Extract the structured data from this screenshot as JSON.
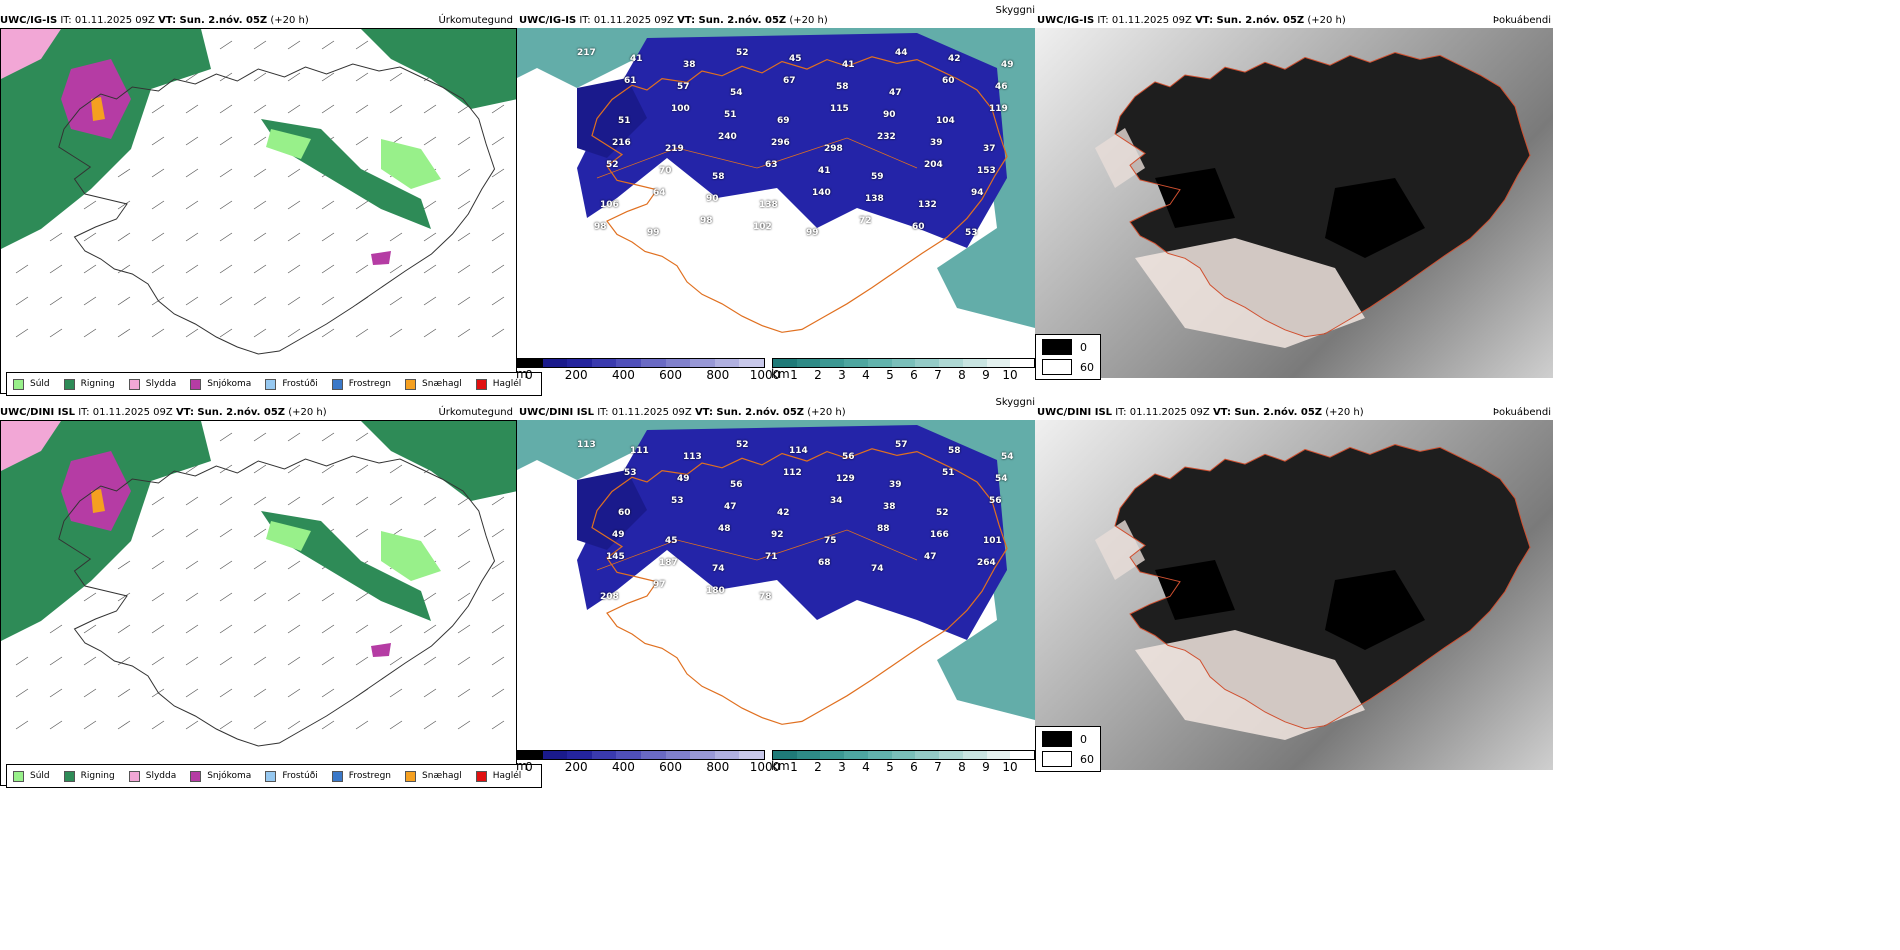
{
  "rows": [
    {
      "model": "UWC/IG-IS",
      "it": "IT: 01.11.2025 09Z",
      "vt": "VT: Sun. 2.nóv. 05Z",
      "lead": "(+20 h)",
      "labels": [
        "217",
        "41",
        "38",
        "52",
        "45",
        "41",
        "44",
        "42",
        "49",
        "61",
        "57",
        "54",
        "67",
        "58",
        "47",
        "60",
        "46",
        "51",
        "100",
        "51",
        "69",
        "115",
        "90",
        "104",
        "119",
        "216",
        "219",
        "240",
        "296",
        "298",
        "232",
        "39",
        "37",
        "52",
        "70",
        "58",
        "63",
        "41",
        "59",
        "204",
        "153",
        "106",
        "64",
        "90",
        "138",
        "140",
        "138",
        "132",
        "94",
        "98",
        "99",
        "98",
        "102",
        "99",
        "72",
        "60",
        "53"
      ]
    },
    {
      "model": "UWC/DINI ISL",
      "it": "IT: 01.11.2025 09Z",
      "vt": "VT: Sun. 2.nóv. 05Z",
      "lead": "(+20 h)",
      "labels": [
        "113",
        "111",
        "113",
        "52",
        "114",
        "56",
        "57",
        "58",
        "54",
        "53",
        "49",
        "56",
        "112",
        "129",
        "39",
        "51",
        "54",
        "60",
        "53",
        "47",
        "42",
        "34",
        "38",
        "52",
        "56",
        "49",
        "45",
        "48",
        "92",
        "75",
        "88",
        "166",
        "101",
        "145",
        "187",
        "74",
        "71",
        "68",
        "74",
        "47",
        "264",
        "208",
        "97",
        "180",
        "78"
      ]
    }
  ],
  "precip": {
    "title": "Úrkomutegund",
    "legend": [
      {
        "label": "Súld",
        "color": "#98f08a"
      },
      {
        "label": "Rigning",
        "color": "#2e8b57"
      },
      {
        "label": "Slydda",
        "color": "#f2a7d6"
      },
      {
        "label": "Snjókoma",
        "color": "#b53ca4"
      },
      {
        "label": "Frostúði",
        "color": "#96c8f0"
      },
      {
        "label": "Frostregn",
        "color": "#3a78c8"
      },
      {
        "label": "Snæhagl",
        "color": "#f5a020"
      },
      {
        "label": "Haglél",
        "color": "#e01010"
      }
    ]
  },
  "visibility": {
    "title": "Skyggni",
    "ceiling_unit": "m",
    "ceiling_ticks": [
      "0",
      "200",
      "400",
      "600",
      "800",
      "1000"
    ],
    "ceiling_colors": [
      "#000000",
      "#1a1a8c",
      "#24249e",
      "#3a3aae",
      "#5050ba",
      "#6a6ac4",
      "#8080cc",
      "#9898d6",
      "#b0b0e0",
      "#c8c8ea"
    ],
    "vis_unit": "km",
    "vis_ticks": [
      "1",
      "2",
      "3",
      "4",
      "5",
      "6",
      "7",
      "8",
      "9",
      "10"
    ],
    "vis_colors": [
      "#1f7a78",
      "#2e8a86",
      "#3c9893",
      "#4ea6a0",
      "#62b3ad",
      "#7abfba",
      "#94cbc7",
      "#aed8d4",
      "#c8e4e1",
      "#e3f1ef",
      "#ffffff"
    ]
  },
  "fog": {
    "title": "Þokuábendi",
    "legend": [
      {
        "label": "0",
        "color": "#000000"
      },
      {
        "label": "60",
        "color": "#ffffff"
      }
    ]
  }
}
